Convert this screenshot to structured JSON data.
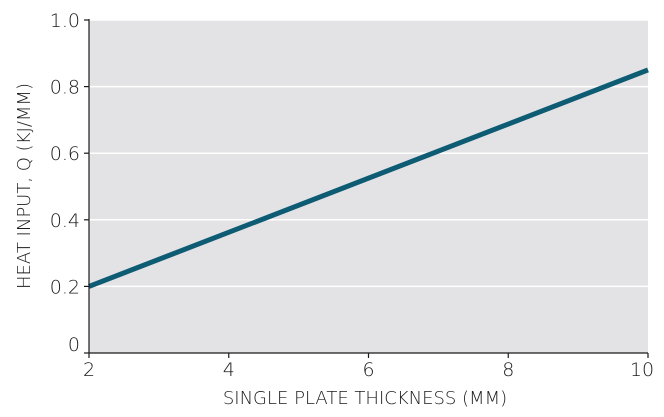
{
  "chart_data": {
    "type": "line",
    "title": "",
    "xlabel": "SINGLE PLATE THICKNESS (MM)",
    "ylabel": "HEAT INPUT, Q (KJ/MM)",
    "xlim": [
      2,
      10
    ],
    "ylim": [
      0,
      1.0
    ],
    "xticks": [
      "2",
      "4",
      "6",
      "8",
      "10"
    ],
    "yticks": [
      "0",
      "0.2",
      "0.4",
      "0.6",
      "0.8",
      "1.0"
    ],
    "grid": true,
    "legend": "none",
    "series": [
      {
        "x": [
          2,
          10
        ],
        "y": [
          0.2,
          0.85
        ]
      }
    ],
    "colors": {
      "plot_bg": "#e3e3e5",
      "grid": "#ffffff",
      "line": "#0e5c74",
      "axis": "#1a1a1a"
    }
  }
}
